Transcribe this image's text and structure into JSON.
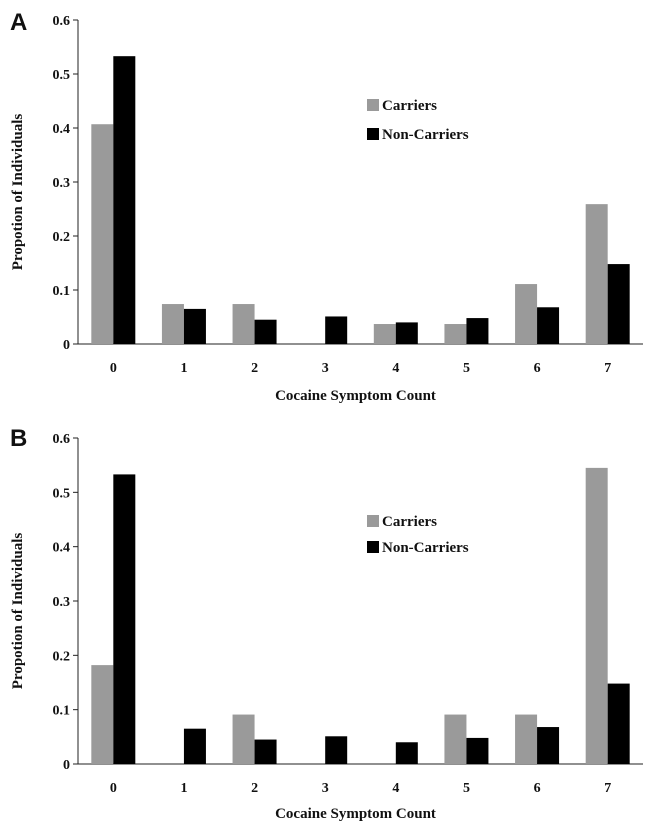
{
  "chart_data": [
    {
      "type": "bar",
      "panel_label": "A",
      "categories": [
        "0",
        "1",
        "2",
        "3",
        "4",
        "5",
        "6",
        "7"
      ],
      "series": [
        {
          "name": "Carriers",
          "color": "#9a9a9a",
          "values": [
            0.407,
            0.074,
            0.074,
            0,
            0.037,
            0.037,
            0.111,
            0.259
          ]
        },
        {
          "name": "Non-Carriers",
          "color": "#000000",
          "values": [
            0.533,
            0.065,
            0.045,
            0.051,
            0.04,
            0.048,
            0.068,
            0.148
          ]
        }
      ],
      "y_ticks": [
        "0",
        "0.1",
        "0.2",
        "0.3",
        "0.4",
        "0.5",
        "0.6"
      ],
      "ylim": [
        0,
        0.6
      ],
      "xlabel": "Cocaine Symptom Count",
      "ylabel": "Propotion of Individuals",
      "legend_position": "upper-right",
      "grid": false
    },
    {
      "type": "bar",
      "panel_label": "B",
      "categories": [
        "0",
        "1",
        "2",
        "3",
        "4",
        "5",
        "6",
        "7"
      ],
      "series": [
        {
          "name": "Carriers",
          "color": "#9a9a9a",
          "values": [
            0.182,
            0,
            0.091,
            0,
            0,
            0.091,
            0.091,
            0.545
          ]
        },
        {
          "name": "Non-Carriers",
          "color": "#000000",
          "values": [
            0.533,
            0.065,
            0.045,
            0.051,
            0.04,
            0.048,
            0.068,
            0.148
          ]
        }
      ],
      "y_ticks": [
        "0",
        "0.1",
        "0.2",
        "0.3",
        "0.4",
        "0.5",
        "0.6"
      ],
      "ylim": [
        0,
        0.6
      ],
      "xlabel": "Cocaine Symptom Count",
      "ylabel": "Propotion of Individuals",
      "legend_position": "upper-right",
      "grid": false
    }
  ]
}
